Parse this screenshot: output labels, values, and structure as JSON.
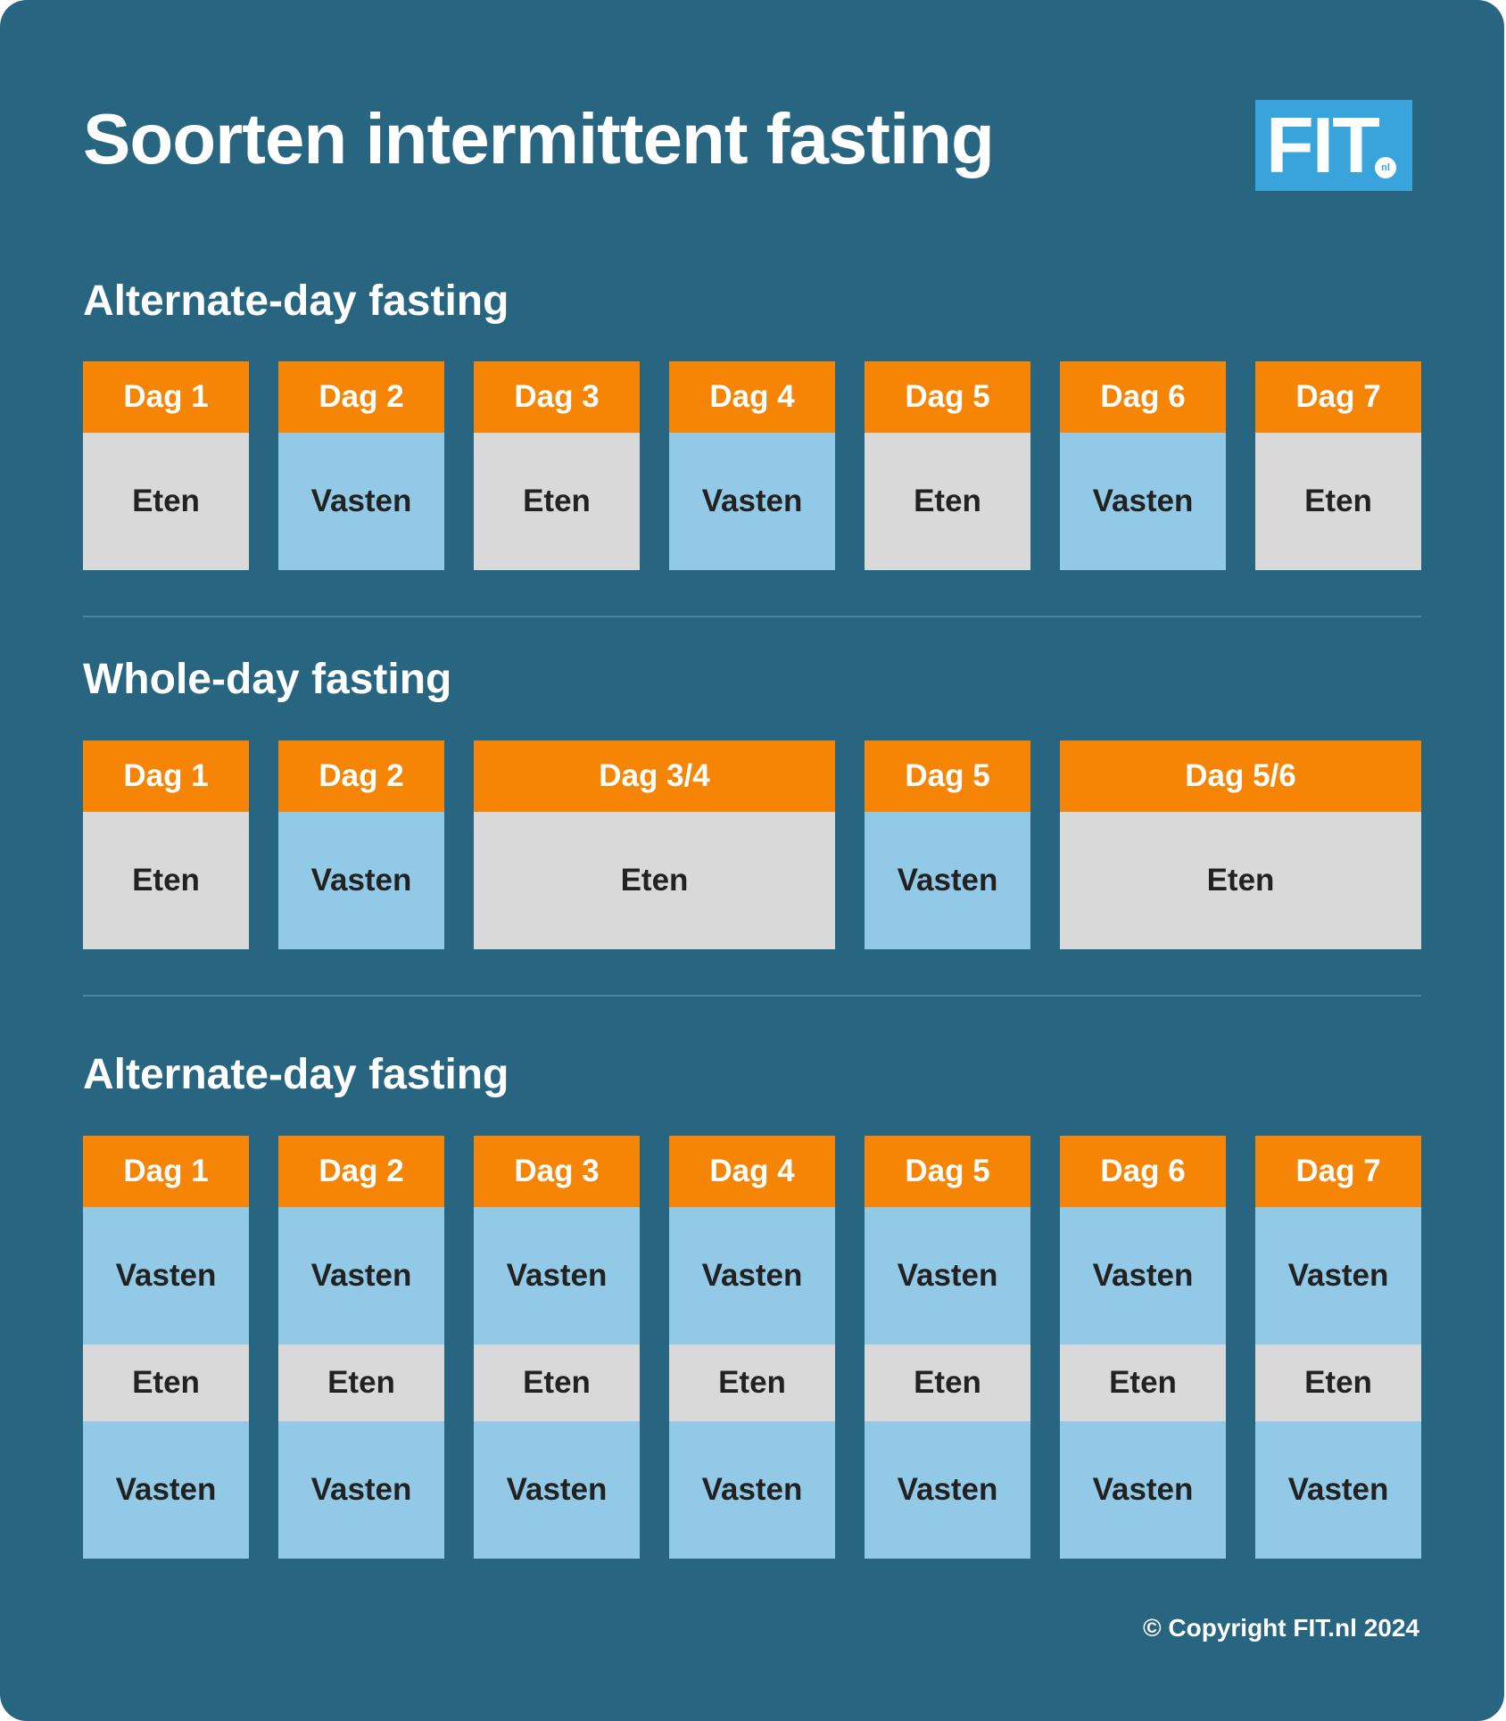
{
  "title": "Soorten intermittent fasting",
  "logo": {
    "text": "FIT",
    "suffix": "nl"
  },
  "sections": [
    {
      "title": "Alternate-day fasting",
      "columns": [
        {
          "header": "Dag 1",
          "cells": [
            {
              "label": "Eten",
              "type": "eat"
            }
          ]
        },
        {
          "header": "Dag 2",
          "cells": [
            {
              "label": "Vasten",
              "type": "fast"
            }
          ]
        },
        {
          "header": "Dag 3",
          "cells": [
            {
              "label": "Eten",
              "type": "eat"
            }
          ]
        },
        {
          "header": "Dag 4",
          "cells": [
            {
              "label": "Vasten",
              "type": "fast"
            }
          ]
        },
        {
          "header": "Dag 5",
          "cells": [
            {
              "label": "Eten",
              "type": "eat"
            }
          ]
        },
        {
          "header": "Dag 6",
          "cells": [
            {
              "label": "Vasten",
              "type": "fast"
            }
          ]
        },
        {
          "header": "Dag 7",
          "cells": [
            {
              "label": "Eten",
              "type": "eat"
            }
          ]
        }
      ]
    },
    {
      "title": "Whole-day fasting",
      "columns": [
        {
          "header": "Dag 1",
          "cells": [
            {
              "label": "Eten",
              "type": "eat"
            }
          ]
        },
        {
          "header": "Dag 2",
          "cells": [
            {
              "label": "Vasten",
              "type": "fast"
            }
          ]
        },
        {
          "header": "Dag 3/4",
          "cells": [
            {
              "label": "Eten",
              "type": "eat"
            }
          ]
        },
        {
          "header": "Dag 5",
          "cells": [
            {
              "label": "Vasten",
              "type": "fast"
            }
          ]
        },
        {
          "header": "Dag 5/6",
          "cells": [
            {
              "label": "Eten",
              "type": "eat"
            }
          ]
        }
      ]
    },
    {
      "title": "Alternate-day fasting",
      "columns": [
        {
          "header": "Dag 1",
          "cells": [
            {
              "label": "Vasten",
              "type": "fast"
            },
            {
              "label": "Eten",
              "type": "eat"
            },
            {
              "label": "Vasten",
              "type": "fast"
            }
          ]
        },
        {
          "header": "Dag 2",
          "cells": [
            {
              "label": "Vasten",
              "type": "fast"
            },
            {
              "label": "Eten",
              "type": "eat"
            },
            {
              "label": "Vasten",
              "type": "fast"
            }
          ]
        },
        {
          "header": "Dag 3",
          "cells": [
            {
              "label": "Vasten",
              "type": "fast"
            },
            {
              "label": "Eten",
              "type": "eat"
            },
            {
              "label": "Vasten",
              "type": "fast"
            }
          ]
        },
        {
          "header": "Dag 4",
          "cells": [
            {
              "label": "Vasten",
              "type": "fast"
            },
            {
              "label": "Eten",
              "type": "eat"
            },
            {
              "label": "Vasten",
              "type": "fast"
            }
          ]
        },
        {
          "header": "Dag 5",
          "cells": [
            {
              "label": "Vasten",
              "type": "fast"
            },
            {
              "label": "Eten",
              "type": "eat"
            },
            {
              "label": "Vasten",
              "type": "fast"
            }
          ]
        },
        {
          "header": "Dag 6",
          "cells": [
            {
              "label": "Vasten",
              "type": "fast"
            },
            {
              "label": "Eten",
              "type": "eat"
            },
            {
              "label": "Vasten",
              "type": "fast"
            }
          ]
        },
        {
          "header": "Dag 7",
          "cells": [
            {
              "label": "Vasten",
              "type": "fast"
            },
            {
              "label": "Eten",
              "type": "eat"
            },
            {
              "label": "Vasten",
              "type": "fast"
            }
          ]
        }
      ]
    }
  ],
  "copyright": "© Copyright FIT.nl 2024",
  "colors": {
    "background": "#276580",
    "header": "#f78505",
    "eat": "#d9d9d9",
    "fast": "#91c9e6",
    "logo": "#39a3dc"
  }
}
